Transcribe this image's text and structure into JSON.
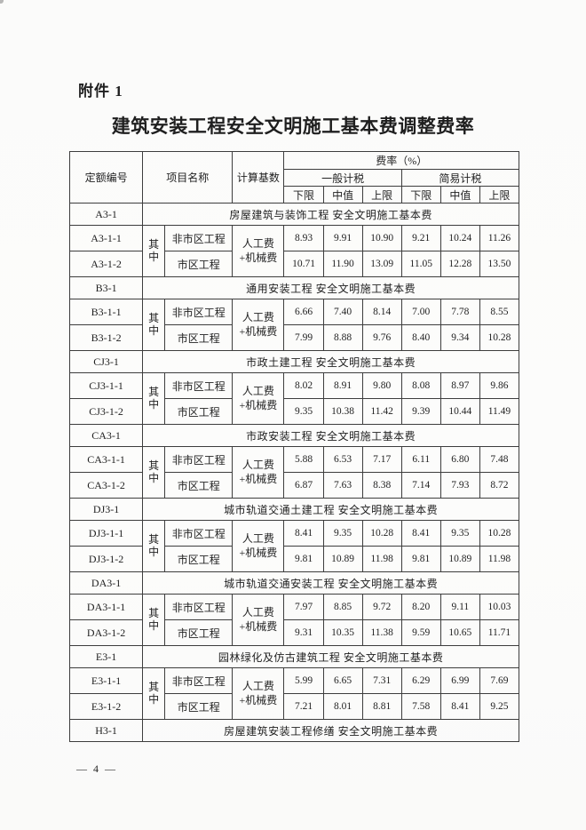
{
  "page": {
    "attachment_label": "附件 1",
    "title": "建筑安装工程安全文明施工基本费调整费率",
    "page_number": "— 4 —"
  },
  "colors": {
    "paper": "#fbfbfa",
    "ink": "#1f1f1f",
    "table_border": "#3d3d3d"
  },
  "table": {
    "header": {
      "col_code": "定额编号",
      "col_name": "项目名称",
      "col_base": "计算基数",
      "col_rate": "费率（%）",
      "group_general": "一般计税",
      "group_simple": "简易计税",
      "sub_cols": [
        "下限",
        "中值",
        "上限",
        "下限",
        "中值",
        "上限"
      ]
    },
    "zhong_label": "其中",
    "base_label": "人工费+机械费",
    "sections": [
      {
        "code": "A3-1",
        "title": "房屋建筑与装饰工程  安全文明施工基本费",
        "rows": [
          {
            "code": "A3-1-1",
            "name": "非市区工程",
            "values": [
              "8.93",
              "9.91",
              "10.90",
              "9.21",
              "10.24",
              "11.26"
            ]
          },
          {
            "code": "A3-1-2",
            "name": "市区工程",
            "values": [
              "10.71",
              "11.90",
              "13.09",
              "11.05",
              "12.28",
              "13.50"
            ]
          }
        ]
      },
      {
        "code": "B3-1",
        "title": "通用安装工程  安全文明施工基本费",
        "rows": [
          {
            "code": "B3-1-1",
            "name": "非市区工程",
            "values": [
              "6.66",
              "7.40",
              "8.14",
              "7.00",
              "7.78",
              "8.55"
            ]
          },
          {
            "code": "B3-1-2",
            "name": "市区工程",
            "values": [
              "7.99",
              "8.88",
              "9.76",
              "8.40",
              "9.34",
              "10.28"
            ]
          }
        ]
      },
      {
        "code": "CJ3-1",
        "title": "市政土建工程  安全文明施工基本费",
        "rows": [
          {
            "code": "CJ3-1-1",
            "name": "非市区工程",
            "values": [
              "8.02",
              "8.91",
              "9.80",
              "8.08",
              "8.97",
              "9.86"
            ]
          },
          {
            "code": "CJ3-1-2",
            "name": "市区工程",
            "values": [
              "9.35",
              "10.38",
              "11.42",
              "9.39",
              "10.44",
              "11.49"
            ]
          }
        ]
      },
      {
        "code": "CA3-1",
        "title": "市政安装工程  安全文明施工基本费",
        "rows": [
          {
            "code": "CA3-1-1",
            "name": "非市区工程",
            "values": [
              "5.88",
              "6.53",
              "7.17",
              "6.11",
              "6.80",
              "7.48"
            ]
          },
          {
            "code": "CA3-1-2",
            "name": "市区工程",
            "values": [
              "6.87",
              "7.63",
              "8.38",
              "7.14",
              "7.93",
              "8.72"
            ]
          }
        ]
      },
      {
        "code": "DJ3-1",
        "title": "城市轨道交通土建工程  安全文明施工基本费",
        "rows": [
          {
            "code": "DJ3-1-1",
            "name": "非市区工程",
            "values": [
              "8.41",
              "9.35",
              "10.28",
              "8.41",
              "9.35",
              "10.28"
            ]
          },
          {
            "code": "DJ3-1-2",
            "name": "市区工程",
            "values": [
              "9.81",
              "10.89",
              "11.98",
              "9.81",
              "10.89",
              "11.98"
            ]
          }
        ]
      },
      {
        "code": "DA3-1",
        "title": "城市轨道交通安装工程  安全文明施工基本费",
        "rows": [
          {
            "code": "DA3-1-1",
            "name": "非市区工程",
            "values": [
              "7.97",
              "8.85",
              "9.72",
              "8.20",
              "9.11",
              "10.03"
            ]
          },
          {
            "code": "DA3-1-2",
            "name": "市区工程",
            "values": [
              "9.31",
              "10.35",
              "11.38",
              "9.59",
              "10.65",
              "11.71"
            ]
          }
        ]
      },
      {
        "code": "E3-1",
        "title": "园林绿化及仿古建筑工程  安全文明施工基本费",
        "rows": [
          {
            "code": "E3-1-1",
            "name": "非市区工程",
            "values": [
              "5.99",
              "6.65",
              "7.31",
              "6.29",
              "6.99",
              "7.69"
            ]
          },
          {
            "code": "E3-1-2",
            "name": "市区工程",
            "values": [
              "7.21",
              "8.01",
              "8.81",
              "7.58",
              "8.41",
              "9.25"
            ]
          }
        ]
      },
      {
        "code": "H3-1",
        "title": "房屋建筑安装工程修缮  安全文明施工基本费",
        "rows": []
      }
    ]
  }
}
